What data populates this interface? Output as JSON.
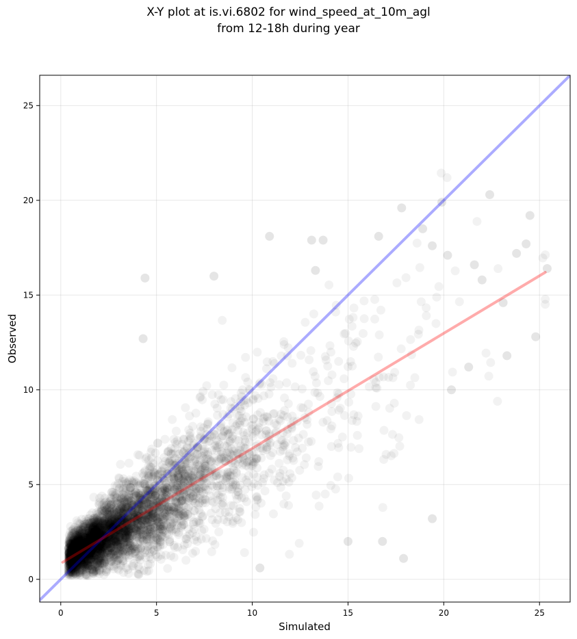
{
  "chart_data": {
    "type": "scatter",
    "title_lines": [
      "X-Y plot at is.vi.6802 for wind_speed_at_10m_agl",
      "from 12-18h during year"
    ],
    "xlabel": "Simulated",
    "ylabel": "Observed",
    "xlim": [
      -1.1,
      26.6
    ],
    "ylim": [
      -1.2,
      26.6
    ],
    "xticks": [
      0,
      5,
      10,
      15,
      20,
      25
    ],
    "yticks": [
      0,
      5,
      10,
      15,
      20,
      25
    ],
    "grid": true,
    "colors": {
      "points": "#000000",
      "identity_line": "#0000ff",
      "fit_line": "#ff0000"
    },
    "identity_line": {
      "x": [
        -1.1,
        26.6
      ],
      "y": [
        -1.1,
        26.6
      ]
    },
    "fit_line": {
      "x": [
        0.1,
        25.3
      ],
      "y": [
        0.9,
        16.2
      ]
    },
    "highlighted_points": [
      {
        "x": 22.4,
        "y": 20.3
      },
      {
        "x": 19.9,
        "y": 19.9
      },
      {
        "x": 17.8,
        "y": 19.6
      },
      {
        "x": 24.5,
        "y": 19.2
      },
      {
        "x": 10.9,
        "y": 18.1
      },
      {
        "x": 16.6,
        "y": 18.1
      },
      {
        "x": 18.9,
        "y": 18.5
      },
      {
        "x": 13.1,
        "y": 17.9
      },
      {
        "x": 13.7,
        "y": 17.9
      },
      {
        "x": 24.3,
        "y": 17.7
      },
      {
        "x": 19.4,
        "y": 17.6
      },
      {
        "x": 23.8,
        "y": 17.2
      },
      {
        "x": 20.2,
        "y": 17.1
      },
      {
        "x": 21.6,
        "y": 16.6
      },
      {
        "x": 25.4,
        "y": 16.4
      },
      {
        "x": 4.4,
        "y": 15.9
      },
      {
        "x": 8.0,
        "y": 16.0
      },
      {
        "x": 13.3,
        "y": 16.3
      },
      {
        "x": 22.0,
        "y": 15.8
      },
      {
        "x": 23.1,
        "y": 14.6
      },
      {
        "x": 24.8,
        "y": 12.8
      },
      {
        "x": 4.3,
        "y": 12.7
      },
      {
        "x": 19.4,
        "y": 3.2
      },
      {
        "x": 17.9,
        "y": 1.1
      },
      {
        "x": 16.8,
        "y": 2.0
      },
      {
        "x": 15.0,
        "y": 2.0
      },
      {
        "x": 10.4,
        "y": 0.6
      },
      {
        "x": 23.3,
        "y": 11.8
      },
      {
        "x": 21.3,
        "y": 11.2
      },
      {
        "x": 20.4,
        "y": 10.0
      }
    ]
  }
}
